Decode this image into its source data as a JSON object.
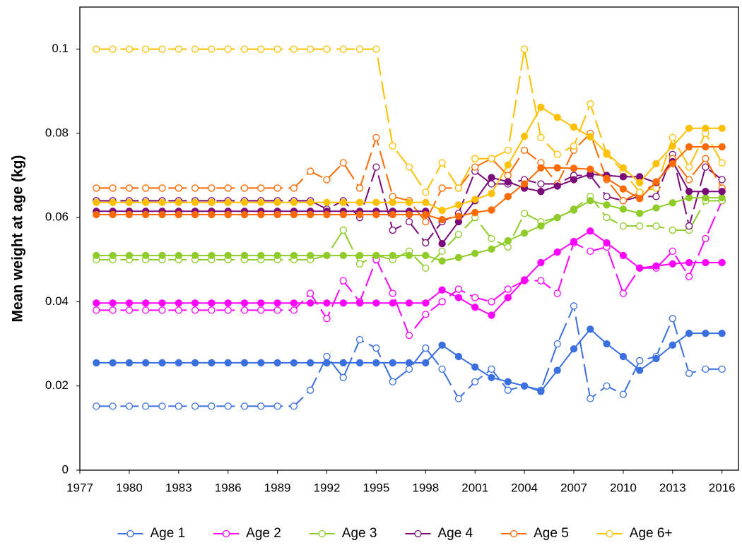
{
  "chart_data": {
    "type": "line",
    "y_label": "Mean weight at age (kg)",
    "x": [
      1978,
      1979,
      1980,
      1981,
      1982,
      1983,
      1984,
      1985,
      1986,
      1987,
      1988,
      1989,
      1990,
      1991,
      1992,
      1993,
      1994,
      1995,
      1996,
      1997,
      1998,
      1999,
      2000,
      2001,
      2002,
      2003,
      2004,
      2005,
      2006,
      2007,
      2008,
      2009,
      2010,
      2011,
      2012,
      2013,
      2014,
      2015,
      2016
    ],
    "xlim": [
      1977,
      2017
    ],
    "xticks": [
      1977,
      1980,
      1983,
      1986,
      1989,
      1992,
      1995,
      1998,
      2001,
      2004,
      2007,
      2010,
      2013,
      2016
    ],
    "ylim": [
      0,
      0.11
    ],
    "yticks": [
      0,
      0.02,
      0.04,
      0.06,
      0.08,
      0.1
    ],
    "grid": false,
    "legend": "bottom",
    "series": [
      {
        "name": "Age 1",
        "color": "#3a6fe0",
        "style": "dashed",
        "marker": "open",
        "values": [
          0.0152,
          0.0152,
          0.0152,
          0.0152,
          0.0152,
          0.0152,
          0.0152,
          0.0152,
          0.0152,
          0.0152,
          0.0152,
          0.0152,
          0.0152,
          0.019,
          0.027,
          0.022,
          0.031,
          0.029,
          0.021,
          0.024,
          0.029,
          0.024,
          0.017,
          0.021,
          0.024,
          0.019,
          0.02,
          0.019,
          0.03,
          0.039,
          0.017,
          0.02,
          0.018,
          0.026,
          0.027,
          0.036,
          0.023,
          0.024,
          0.024
        ]
      },
      {
        "name": "Age 2",
        "color": "#ff00ff",
        "style": "dashed",
        "marker": "open",
        "values": [
          0.038,
          0.038,
          0.038,
          0.038,
          0.038,
          0.038,
          0.038,
          0.038,
          0.038,
          0.038,
          0.038,
          0.038,
          0.038,
          0.042,
          0.036,
          0.045,
          0.04,
          0.05,
          0.042,
          0.032,
          0.037,
          0.04,
          0.043,
          0.041,
          0.04,
          0.043,
          0.045,
          0.045,
          0.042,
          0.054,
          0.052,
          0.053,
          0.042,
          0.048,
          0.048,
          0.052,
          0.046,
          0.055,
          0.064
        ]
      },
      {
        "name": "Age 3",
        "color": "#8fcc2a",
        "style": "dashed",
        "marker": "open",
        "values": [
          0.05,
          0.05,
          0.05,
          0.05,
          0.05,
          0.05,
          0.05,
          0.05,
          0.05,
          0.05,
          0.05,
          0.05,
          0.05,
          0.05,
          0.051,
          0.057,
          0.049,
          0.051,
          0.05,
          0.052,
          0.048,
          0.052,
          0.056,
          0.06,
          0.055,
          0.053,
          0.061,
          0.059,
          0.06,
          0.062,
          0.065,
          0.06,
          0.058,
          0.058,
          0.058,
          0.057,
          0.057,
          0.064,
          0.064
        ]
      },
      {
        "name": "Age 4",
        "color": "#7a0a7a",
        "style": "dashed",
        "marker": "open",
        "values": [
          0.064,
          0.064,
          0.064,
          0.064,
          0.064,
          0.064,
          0.064,
          0.064,
          0.064,
          0.064,
          0.064,
          0.064,
          0.064,
          0.064,
          0.062,
          0.064,
          0.06,
          0.072,
          0.057,
          0.059,
          0.054,
          0.059,
          0.061,
          0.071,
          0.068,
          0.068,
          0.069,
          0.068,
          0.068,
          0.07,
          0.07,
          0.065,
          0.064,
          0.065,
          0.065,
          0.075,
          0.058,
          0.072,
          0.069
        ]
      },
      {
        "name": "Age 5",
        "color": "#ff6a00",
        "style": "dashed",
        "marker": "open",
        "values": [
          0.067,
          0.067,
          0.067,
          0.067,
          0.067,
          0.067,
          0.067,
          0.067,
          0.067,
          0.067,
          0.067,
          0.067,
          0.067,
          0.071,
          0.069,
          0.073,
          0.067,
          0.079,
          0.065,
          0.064,
          0.059,
          0.067,
          0.067,
          0.072,
          0.074,
          0.07,
          0.076,
          0.073,
          0.068,
          0.076,
          0.08,
          0.069,
          0.064,
          0.066,
          0.068,
          0.074,
          0.069,
          0.074,
          0.067
        ]
      },
      {
        "name": "Age 6+",
        "color": "#ffc000",
        "style": "dashed",
        "marker": "open",
        "values": [
          0.1,
          0.1,
          0.1,
          0.1,
          0.1,
          0.1,
          0.1,
          0.1,
          0.1,
          0.1,
          0.1,
          0.1,
          0.1,
          0.1,
          0.1,
          0.1,
          0.1,
          0.1,
          0.077,
          0.072,
          0.066,
          0.073,
          0.067,
          0.074,
          0.074,
          0.076,
          0.1,
          0.079,
          0.075,
          0.077,
          0.087,
          0.075,
          0.071,
          0.066,
          0.067,
          0.079,
          0.072,
          0.08,
          0.073
        ]
      },
      {
        "color": "#3a6fe0",
        "style": "solid",
        "marker": "filled",
        "values": [
          0.0255,
          0.0255,
          0.0255,
          0.0255,
          0.0255,
          0.0255,
          0.0255,
          0.0255,
          0.0255,
          0.0255,
          0.0255,
          0.0255,
          0.0255,
          0.0255,
          0.0255,
          0.0255,
          0.0255,
          0.0255,
          0.0255,
          0.0255,
          0.0255,
          0.0297,
          0.027,
          0.0245,
          0.022,
          0.021,
          0.02,
          0.0187,
          0.0237,
          0.0288,
          0.0335,
          0.03,
          0.027,
          0.0237,
          0.0265,
          0.0297,
          0.0325,
          0.0325,
          0.0325
        ]
      },
      {
        "color": "#ff00ff",
        "style": "solid",
        "marker": "filled",
        "values": [
          0.0397,
          0.0397,
          0.0397,
          0.0397,
          0.0397,
          0.0397,
          0.0397,
          0.0397,
          0.0397,
          0.0397,
          0.0397,
          0.0397,
          0.0397,
          0.0397,
          0.0397,
          0.0397,
          0.0397,
          0.0397,
          0.0397,
          0.0397,
          0.0397,
          0.0428,
          0.041,
          0.0387,
          0.0368,
          0.041,
          0.0452,
          0.0493,
          0.0518,
          0.0543,
          0.0568,
          0.054,
          0.051,
          0.048,
          0.0485,
          0.049,
          0.0493,
          0.0493,
          0.0493
        ]
      },
      {
        "color": "#8fcc2a",
        "style": "solid",
        "marker": "filled",
        "values": [
          0.051,
          0.051,
          0.051,
          0.051,
          0.051,
          0.051,
          0.051,
          0.051,
          0.051,
          0.051,
          0.051,
          0.051,
          0.051,
          0.051,
          0.051,
          0.051,
          0.051,
          0.051,
          0.051,
          0.051,
          0.051,
          0.0497,
          0.0505,
          0.0515,
          0.0525,
          0.0545,
          0.0563,
          0.058,
          0.06,
          0.0618,
          0.064,
          0.063,
          0.062,
          0.061,
          0.0623,
          0.0635,
          0.0647,
          0.0647,
          0.0647
        ]
      },
      {
        "color": "#7a0a7a",
        "style": "solid",
        "marker": "filled",
        "values": [
          0.0615,
          0.0615,
          0.0615,
          0.0615,
          0.0615,
          0.0615,
          0.0615,
          0.0615,
          0.0615,
          0.0615,
          0.0615,
          0.0615,
          0.0615,
          0.0615,
          0.0615,
          0.0615,
          0.0615,
          0.0615,
          0.0615,
          0.0615,
          0.0615,
          0.0538,
          0.059,
          0.064,
          0.0695,
          0.0685,
          0.067,
          0.0662,
          0.0675,
          0.069,
          0.0703,
          0.07,
          0.0697,
          0.0697,
          0.0683,
          0.0733,
          0.0662,
          0.0662,
          0.0662
        ]
      },
      {
        "color": "#ff6a00",
        "style": "solid",
        "marker": "filled",
        "values": [
          0.0607,
          0.0607,
          0.0607,
          0.0607,
          0.0607,
          0.0607,
          0.0607,
          0.0607,
          0.0607,
          0.0607,
          0.0607,
          0.0607,
          0.0607,
          0.0607,
          0.0607,
          0.0607,
          0.0607,
          0.0607,
          0.0607,
          0.0607,
          0.0607,
          0.0595,
          0.0603,
          0.0612,
          0.0618,
          0.065,
          0.068,
          0.0718,
          0.0718,
          0.0717,
          0.0715,
          0.0693,
          0.0668,
          0.0645,
          0.0685,
          0.0728,
          0.0768,
          0.0768,
          0.0768
        ]
      },
      {
        "color": "#ffc000",
        "style": "solid",
        "marker": "filled",
        "values": [
          0.0636,
          0.0636,
          0.0636,
          0.0636,
          0.0636,
          0.0636,
          0.0636,
          0.0636,
          0.0636,
          0.0636,
          0.0636,
          0.0636,
          0.0636,
          0.0636,
          0.0636,
          0.0636,
          0.0636,
          0.0636,
          0.0636,
          0.0636,
          0.0636,
          0.0617,
          0.063,
          0.0643,
          0.0657,
          0.0725,
          0.0793,
          0.0862,
          0.0838,
          0.0815,
          0.0792,
          0.0753,
          0.0718,
          0.0683,
          0.0728,
          0.077,
          0.0812,
          0.0812,
          0.0812
        ]
      }
    ]
  }
}
